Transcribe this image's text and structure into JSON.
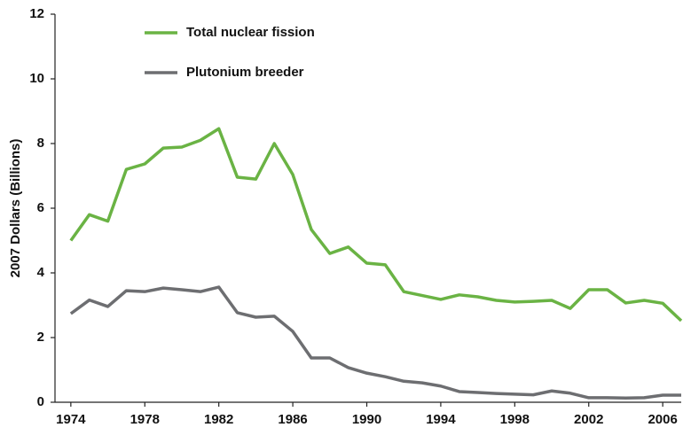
{
  "chart_data": {
    "type": "line",
    "y_label": "2007 Dollars (Billions)",
    "x": [
      1974,
      1975,
      1976,
      1977,
      1978,
      1979,
      1980,
      1981,
      1982,
      1983,
      1984,
      1985,
      1986,
      1987,
      1988,
      1989,
      1990,
      1991,
      1992,
      1993,
      1994,
      1995,
      1996,
      1997,
      1998,
      1999,
      2000,
      2001,
      2002,
      2003,
      2004,
      2005,
      2006,
      2007
    ],
    "series": [
      {
        "name": "Total nuclear fission",
        "color": "#6ab344",
        "values": [
          5.0,
          5.8,
          5.6,
          7.2,
          7.37,
          7.86,
          7.89,
          8.1,
          8.46,
          6.96,
          6.9,
          8.0,
          7.04,
          5.34,
          4.6,
          4.8,
          4.3,
          4.25,
          3.42,
          3.3,
          3.18,
          3.32,
          3.26,
          3.15,
          3.1,
          3.12,
          3.15,
          2.9,
          3.48,
          3.48,
          3.07,
          3.15,
          3.06,
          2.52
        ]
      },
      {
        "name": "Plutonium breeder",
        "color": "#6d6e71",
        "values": [
          2.74,
          3.16,
          2.96,
          3.45,
          3.42,
          3.53,
          3.48,
          3.42,
          3.56,
          2.77,
          2.63,
          2.66,
          2.19,
          1.37,
          1.37,
          1.07,
          0.9,
          0.79,
          0.65,
          0.6,
          0.5,
          0.33,
          0.3,
          0.27,
          0.25,
          0.23,
          0.35,
          0.28,
          0.14,
          0.14,
          0.13,
          0.14,
          0.22,
          0.22
        ]
      }
    ],
    "xlim": [
      1973,
      2007
    ],
    "xticks": [
      1974,
      1978,
      1982,
      1986,
      1990,
      1994,
      1998,
      2002,
      2006
    ],
    "ylim": [
      0,
      12
    ],
    "yticks": [
      0,
      2,
      4,
      6,
      8,
      10,
      12
    ],
    "grid": false,
    "legend": "top"
  }
}
